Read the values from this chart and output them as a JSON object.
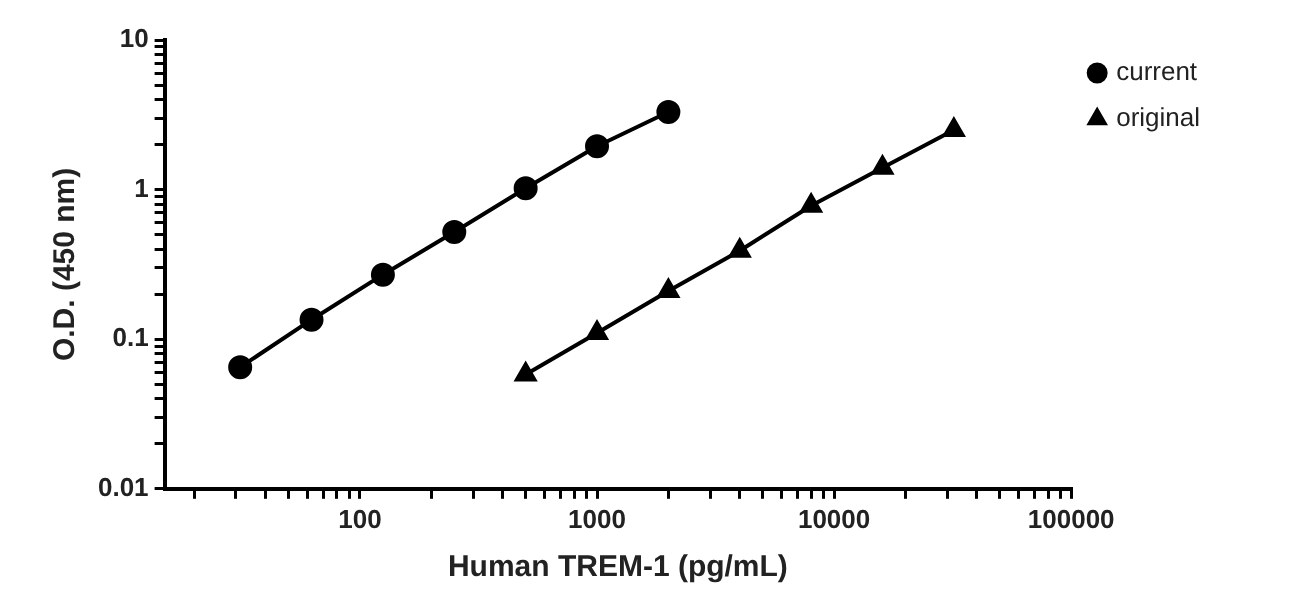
{
  "chart_data": {
    "type": "line",
    "xlabel": "Human TREM-1 (pg/mL)",
    "ylabel": "O.D. (450 nm)",
    "log": "xy",
    "grid": false,
    "legend": "right",
    "xlim": [
      15,
      100000
    ],
    "xticks": [
      {
        "value": 20,
        "label": null
      },
      {
        "value": 30,
        "label": null
      },
      {
        "value": 40,
        "label": null
      },
      {
        "value": 50,
        "label": null
      },
      {
        "value": 60,
        "label": null
      },
      {
        "value": 70,
        "label": null
      },
      {
        "value": 80,
        "label": null
      },
      {
        "value": 90,
        "label": null
      },
      100,
      {
        "value": 200,
        "label": null
      },
      {
        "value": 300,
        "label": null
      },
      {
        "value": 400,
        "label": null
      },
      {
        "value": 500,
        "label": null
      },
      {
        "value": 600,
        "label": null
      },
      {
        "value": 700,
        "label": null
      },
      {
        "value": 800,
        "label": null
      },
      {
        "value": 900,
        "label": null
      },
      1000,
      {
        "value": 2000,
        "label": null
      },
      {
        "value": 3000,
        "label": null
      },
      {
        "value": 4000,
        "label": null
      },
      {
        "value": 5000,
        "label": null
      },
      {
        "value": 6000,
        "label": null
      },
      {
        "value": 7000,
        "label": null
      },
      {
        "value": 8000,
        "label": null
      },
      {
        "value": 9000,
        "label": null
      },
      10000,
      {
        "value": 20000,
        "label": null
      },
      {
        "value": 30000,
        "label": null
      },
      {
        "value": 40000,
        "label": null
      },
      {
        "value": 50000,
        "label": null
      },
      {
        "value": 60000,
        "label": null
      },
      {
        "value": 70000,
        "label": null
      },
      {
        "value": 80000,
        "label": null
      },
      {
        "value": 90000,
        "label": null
      },
      100000
    ],
    "ylim": [
      0.01,
      10
    ],
    "yticks": [
      0.01,
      {
        "value": 0.02,
        "label": null
      },
      {
        "value": 0.03,
        "label": null
      },
      {
        "value": 0.04,
        "label": null
      },
      {
        "value": 0.05,
        "label": null
      },
      {
        "value": 0.06,
        "label": null
      },
      {
        "value": 0.07,
        "label": null
      },
      {
        "value": 0.08,
        "label": null
      },
      {
        "value": 0.09,
        "label": null
      },
      0.1,
      {
        "value": 0.2,
        "label": null
      },
      {
        "value": 0.3,
        "label": null
      },
      {
        "value": 0.4,
        "label": null
      },
      {
        "value": 0.5,
        "label": null
      },
      {
        "value": 0.6,
        "label": null
      },
      {
        "value": 0.7,
        "label": null
      },
      {
        "value": 0.8,
        "label": null
      },
      {
        "value": 0.9,
        "label": null
      },
      1,
      {
        "value": 2,
        "label": null
      },
      {
        "value": 3,
        "label": null
      },
      {
        "value": 4,
        "label": null
      },
      {
        "value": 5,
        "label": null
      },
      {
        "value": 6,
        "label": null
      },
      {
        "value": 7,
        "label": null
      },
      {
        "value": 8,
        "label": null
      },
      {
        "value": 9,
        "label": null
      },
      10
    ],
    "series": [
      {
        "name": "current",
        "color": "#000000",
        "marker": "circle",
        "x": [
          31.25,
          62.5,
          125,
          250,
          500,
          1000,
          2000
        ],
        "values": [
          0.065,
          0.135,
          0.27,
          0.52,
          1.02,
          1.95,
          3.3
        ]
      },
      {
        "name": "original",
        "color": "#000000",
        "marker": "triangle",
        "x": [
          500,
          1000,
          2000,
          4000,
          8000,
          16000,
          32000
        ],
        "values": [
          0.058,
          0.11,
          0.21,
          0.39,
          0.78,
          1.4,
          2.5
        ]
      }
    ]
  }
}
